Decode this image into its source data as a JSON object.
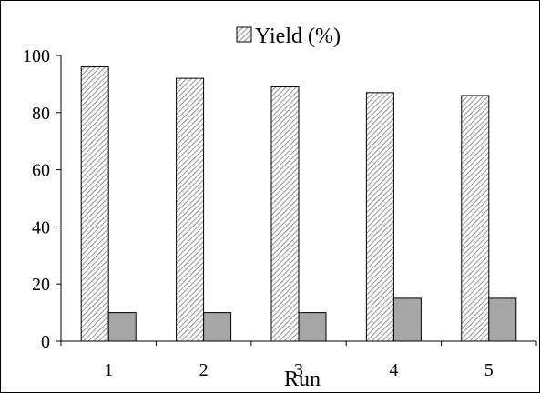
{
  "chart_data": {
    "type": "bar",
    "categories": [
      "1",
      "2",
      "3",
      "4",
      "5"
    ],
    "series": [
      {
        "name": "Yield (%)",
        "values": [
          96,
          92,
          89,
          87,
          86
        ],
        "pattern": "diagonal-hatch"
      },
      {
        "name": "",
        "values": [
          10,
          10,
          10,
          15,
          15
        ],
        "color": "#a6a6a6"
      }
    ],
    "title": "",
    "xlabel": "Run",
    "ylabel": "",
    "ylim": [
      0,
      100
    ],
    "yticks": [
      0,
      20,
      40,
      60,
      80,
      100
    ],
    "grid": false,
    "legend_position": "top-center"
  },
  "legend": {
    "label": "Yield (%)"
  },
  "axes": {
    "xlabel": "Run",
    "yticks": [
      "0",
      "20",
      "40",
      "60",
      "80",
      "100"
    ],
    "xticks": [
      "1",
      "2",
      "3",
      "4",
      "5"
    ]
  },
  "colors": {
    "hatch_bar_fill": "#ffffff",
    "hatch_line": "#7a7a7a",
    "solid_bar": "#a6a6a6",
    "axis": "#000000"
  }
}
